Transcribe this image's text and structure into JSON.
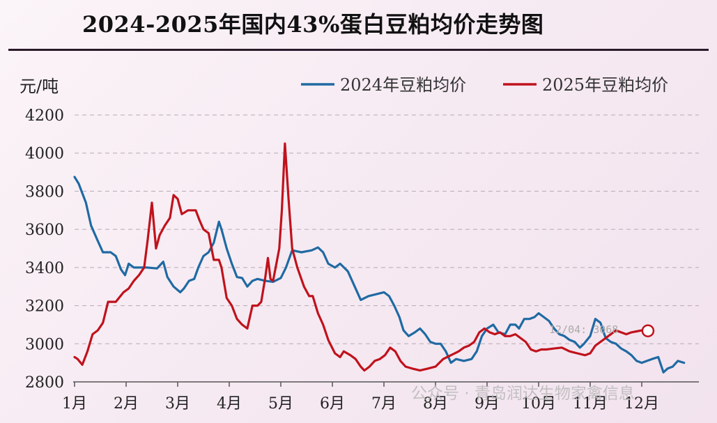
{
  "header": {
    "title": "2024-2025年国内43%蛋白豆粕均价走势图"
  },
  "watermark": "公众号 · 青岛润达生物家禽信息",
  "colors": {
    "s2024": "#1f6aa3",
    "s2025": "#c0121c"
  },
  "chart_data": {
    "type": "line",
    "unit_label": "元/吨",
    "ylim": [
      2800,
      4200
    ],
    "yticks": [
      2800,
      3000,
      3200,
      3400,
      3600,
      3800,
      4000,
      4200
    ],
    "xlim": [
      1,
      13
    ],
    "xticks": [
      {
        "label": "1月",
        "x": 1
      },
      {
        "label": "2月",
        "x": 2
      },
      {
        "label": "3月",
        "x": 3
      },
      {
        "label": "4月",
        "x": 4
      },
      {
        "label": "5月",
        "x": 5
      },
      {
        "label": "6月",
        "x": 6
      },
      {
        "label": "7月",
        "x": 7
      },
      {
        "label": "8月",
        "x": 8
      },
      {
        "label": "9月",
        "x": 9
      },
      {
        "label": "10月",
        "x": 10
      },
      {
        "label": "11月",
        "x": 11
      },
      {
        "label": "12月",
        "x": 12
      }
    ],
    "grid": "horizontal-dashed",
    "legend_position": "top-right",
    "annotation": {
      "label": "12/04: 3068",
      "x": 12.12,
      "y": 3068
    },
    "series": [
      {
        "name": "2024年豆粕均价",
        "color": "#1f6aa3",
        "points": [
          [
            1.0,
            3875
          ],
          [
            1.08,
            3840
          ],
          [
            1.22,
            3740
          ],
          [
            1.32,
            3620
          ],
          [
            1.45,
            3540
          ],
          [
            1.55,
            3480
          ],
          [
            1.7,
            3480
          ],
          [
            1.8,
            3460
          ],
          [
            1.9,
            3390
          ],
          [
            1.98,
            3360
          ],
          [
            2.05,
            3420
          ],
          [
            2.15,
            3400
          ],
          [
            2.4,
            3400
          ],
          [
            2.6,
            3395
          ],
          [
            2.72,
            3430
          ],
          [
            2.8,
            3350
          ],
          [
            2.92,
            3300
          ],
          [
            3.05,
            3270
          ],
          [
            3.12,
            3290
          ],
          [
            3.22,
            3330
          ],
          [
            3.32,
            3340
          ],
          [
            3.4,
            3400
          ],
          [
            3.5,
            3460
          ],
          [
            3.6,
            3480
          ],
          [
            3.7,
            3530
          ],
          [
            3.8,
            3640
          ],
          [
            3.85,
            3600
          ],
          [
            3.95,
            3500
          ],
          [
            4.05,
            3420
          ],
          [
            4.15,
            3350
          ],
          [
            4.25,
            3345
          ],
          [
            4.35,
            3300
          ],
          [
            4.45,
            3330
          ],
          [
            4.55,
            3340
          ],
          [
            4.7,
            3330
          ],
          [
            4.85,
            3325
          ],
          [
            5.0,
            3345
          ],
          [
            5.1,
            3400
          ],
          [
            5.22,
            3490
          ],
          [
            5.4,
            3480
          ],
          [
            5.6,
            3490
          ],
          [
            5.72,
            3505
          ],
          [
            5.82,
            3480
          ],
          [
            5.92,
            3420
          ],
          [
            6.05,
            3400
          ],
          [
            6.15,
            3420
          ],
          [
            6.3,
            3380
          ],
          [
            6.4,
            3320
          ],
          [
            6.55,
            3230
          ],
          [
            6.7,
            3250
          ],
          [
            6.85,
            3260
          ],
          [
            7.0,
            3270
          ],
          [
            7.1,
            3250
          ],
          [
            7.2,
            3200
          ],
          [
            7.3,
            3140
          ],
          [
            7.38,
            3070
          ],
          [
            7.48,
            3040
          ],
          [
            7.6,
            3060
          ],
          [
            7.7,
            3080
          ],
          [
            7.8,
            3050
          ],
          [
            7.9,
            3010
          ],
          [
            8.0,
            3000
          ],
          [
            8.1,
            3000
          ],
          [
            8.2,
            2960
          ],
          [
            8.3,
            2900
          ],
          [
            8.4,
            2920
          ],
          [
            8.55,
            2910
          ],
          [
            8.7,
            2920
          ],
          [
            8.8,
            2960
          ],
          [
            8.9,
            3040
          ],
          [
            9.0,
            3080
          ],
          [
            9.12,
            3100
          ],
          [
            9.22,
            3060
          ],
          [
            9.35,
            3050
          ],
          [
            9.45,
            3100
          ],
          [
            9.55,
            3100
          ],
          [
            9.62,
            3080
          ],
          [
            9.72,
            3130
          ],
          [
            9.82,
            3130
          ],
          [
            9.92,
            3140
          ],
          [
            10.0,
            3160
          ],
          [
            10.1,
            3140
          ],
          [
            10.2,
            3120
          ],
          [
            10.3,
            3080
          ],
          [
            10.4,
            3050
          ],
          [
            10.5,
            3040
          ],
          [
            10.6,
            3020
          ],
          [
            10.7,
            3010
          ],
          [
            10.8,
            2980
          ],
          [
            10.88,
            3000
          ],
          [
            11.0,
            3040
          ],
          [
            11.1,
            3130
          ],
          [
            11.2,
            3110
          ],
          [
            11.3,
            3030
          ],
          [
            11.4,
            3010
          ],
          [
            11.5,
            3000
          ],
          [
            11.6,
            2975
          ],
          [
            11.7,
            2960
          ],
          [
            11.8,
            2940
          ],
          [
            11.9,
            2910
          ],
          [
            12.0,
            2900
          ],
          [
            12.1,
            2910
          ],
          [
            12.2,
            2920
          ],
          [
            12.32,
            2930
          ],
          [
            12.42,
            2850
          ],
          [
            12.5,
            2870
          ],
          [
            12.6,
            2880
          ],
          [
            12.7,
            2910
          ],
          [
            12.82,
            2900
          ]
        ]
      },
      {
        "name": "2025年豆粕均价",
        "color": "#c0121c",
        "points": [
          [
            1.0,
            2930
          ],
          [
            1.06,
            2920
          ],
          [
            1.15,
            2890
          ],
          [
            1.25,
            2960
          ],
          [
            1.35,
            3050
          ],
          [
            1.45,
            3070
          ],
          [
            1.55,
            3110
          ],
          [
            1.65,
            3220
          ],
          [
            1.8,
            3220
          ],
          [
            1.95,
            3270
          ],
          [
            2.05,
            3290
          ],
          [
            2.15,
            3330
          ],
          [
            2.25,
            3360
          ],
          [
            2.35,
            3400
          ],
          [
            2.42,
            3550
          ],
          [
            2.5,
            3740
          ],
          [
            2.58,
            3500
          ],
          [
            2.65,
            3570
          ],
          [
            2.75,
            3620
          ],
          [
            2.85,
            3660
          ],
          [
            2.92,
            3780
          ],
          [
            3.0,
            3760
          ],
          [
            3.08,
            3680
          ],
          [
            3.2,
            3700
          ],
          [
            3.35,
            3700
          ],
          [
            3.42,
            3650
          ],
          [
            3.5,
            3600
          ],
          [
            3.6,
            3580
          ],
          [
            3.7,
            3440
          ],
          [
            3.8,
            3440
          ],
          [
            3.85,
            3400
          ],
          [
            3.95,
            3240
          ],
          [
            4.05,
            3200
          ],
          [
            4.15,
            3130
          ],
          [
            4.25,
            3100
          ],
          [
            4.35,
            3080
          ],
          [
            4.45,
            3200
          ],
          [
            4.55,
            3200
          ],
          [
            4.62,
            3220
          ],
          [
            4.7,
            3350
          ],
          [
            4.75,
            3450
          ],
          [
            4.8,
            3340
          ],
          [
            4.85,
            3330
          ],
          [
            4.9,
            3400
          ],
          [
            4.97,
            3500
          ],
          [
            5.02,
            3700
          ],
          [
            5.08,
            4050
          ],
          [
            5.15,
            3760
          ],
          [
            5.22,
            3500
          ],
          [
            5.32,
            3400
          ],
          [
            5.45,
            3300
          ],
          [
            5.55,
            3250
          ],
          [
            5.62,
            3250
          ],
          [
            5.72,
            3160
          ],
          [
            5.82,
            3100
          ],
          [
            5.92,
            3020
          ],
          [
            6.05,
            2950
          ],
          [
            6.15,
            2930
          ],
          [
            6.22,
            2960
          ],
          [
            6.35,
            2940
          ],
          [
            6.45,
            2920
          ],
          [
            6.55,
            2880
          ],
          [
            6.62,
            2860
          ],
          [
            6.72,
            2880
          ],
          [
            6.82,
            2910
          ],
          [
            6.92,
            2920
          ],
          [
            7.02,
            2940
          ],
          [
            7.12,
            2980
          ],
          [
            7.22,
            2960
          ],
          [
            7.32,
            2910
          ],
          [
            7.42,
            2880
          ],
          [
            7.55,
            2870
          ],
          [
            7.7,
            2860
          ],
          [
            7.85,
            2870
          ],
          [
            8.0,
            2880
          ],
          [
            8.15,
            2920
          ],
          [
            8.3,
            2940
          ],
          [
            8.45,
            2960
          ],
          [
            8.55,
            2980
          ],
          [
            8.65,
            2990
          ],
          [
            8.75,
            3010
          ],
          [
            8.85,
            3060
          ],
          [
            8.95,
            3080
          ],
          [
            9.05,
            3060
          ],
          [
            9.15,
            3050
          ],
          [
            9.25,
            3060
          ],
          [
            9.35,
            3040
          ],
          [
            9.45,
            3040
          ],
          [
            9.55,
            3050
          ],
          [
            9.65,
            3030
          ],
          [
            9.75,
            3010
          ],
          [
            9.85,
            2970
          ],
          [
            9.95,
            2960
          ],
          [
            10.05,
            2970
          ],
          [
            10.15,
            2970
          ],
          [
            10.3,
            2975
          ],
          [
            10.45,
            2980
          ],
          [
            10.6,
            2960
          ],
          [
            10.75,
            2950
          ],
          [
            10.9,
            2940
          ],
          [
            11.0,
            2950
          ],
          [
            11.1,
            2990
          ],
          [
            11.2,
            3010
          ],
          [
            11.3,
            3030
          ],
          [
            11.4,
            3050
          ],
          [
            11.5,
            3070
          ],
          [
            11.6,
            3060
          ],
          [
            11.7,
            3050
          ],
          [
            11.8,
            3060
          ],
          [
            11.9,
            3065
          ],
          [
            12.0,
            3070
          ],
          [
            12.12,
            3068
          ]
        ]
      }
    ]
  }
}
